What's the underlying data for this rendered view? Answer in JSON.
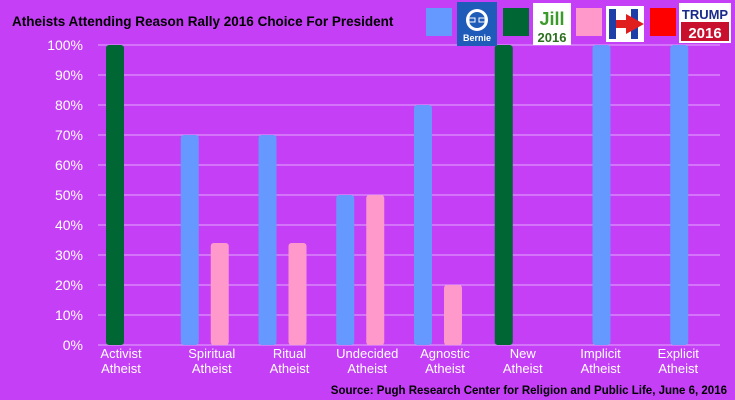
{
  "chart_data": {
    "type": "bar",
    "title": "Atheists Attending Reason Rally 2016 Choice For President",
    "source": "Source: Pugh Research Center for Religion and Public Life,  June 6, 2016",
    "categories": [
      [
        "Activist",
        "Atheist"
      ],
      [
        "Spiritual",
        "Atheist"
      ],
      [
        "Ritual",
        "Atheist"
      ],
      [
        "Undecided",
        "Atheist"
      ],
      [
        "Agnostic",
        "Atheist"
      ],
      [
        "New",
        "Atheist"
      ],
      [
        "Implicit",
        "Atheist"
      ],
      [
        "Explicit",
        "Atheist"
      ]
    ],
    "series": [
      {
        "color": "#6699ff",
        "legend_logo": "Bernie",
        "values": [
          0,
          70,
          70,
          50,
          80,
          0,
          100,
          100
        ]
      },
      {
        "color": "#006633",
        "legend_logo": "Jill 2016",
        "values": [
          100,
          0,
          0,
          0,
          0,
          100,
          0,
          0
        ]
      },
      {
        "color": "#ff99cc",
        "legend_logo": "Hillary",
        "values": [
          0,
          34,
          34,
          50,
          20,
          0,
          0,
          0
        ]
      },
      {
        "color": "#ff0000",
        "legend_logo": "TRUMP 2016",
        "values": [
          0,
          0,
          0,
          0,
          0,
          0,
          0,
          0
        ]
      }
    ],
    "ylim": [
      0,
      100
    ],
    "yticks": [
      "0%",
      "10%",
      "20%",
      "30%",
      "40%",
      "50%",
      "60%",
      "70%",
      "80%",
      "90%",
      "100%"
    ],
    "grid": true,
    "legend_placement": "top-right"
  },
  "legend": {
    "bernie_text": "Bernie",
    "jill_text": "Jill",
    "jill_year": "2016",
    "trump_text": "TRUMP",
    "trump_year": "2016"
  }
}
